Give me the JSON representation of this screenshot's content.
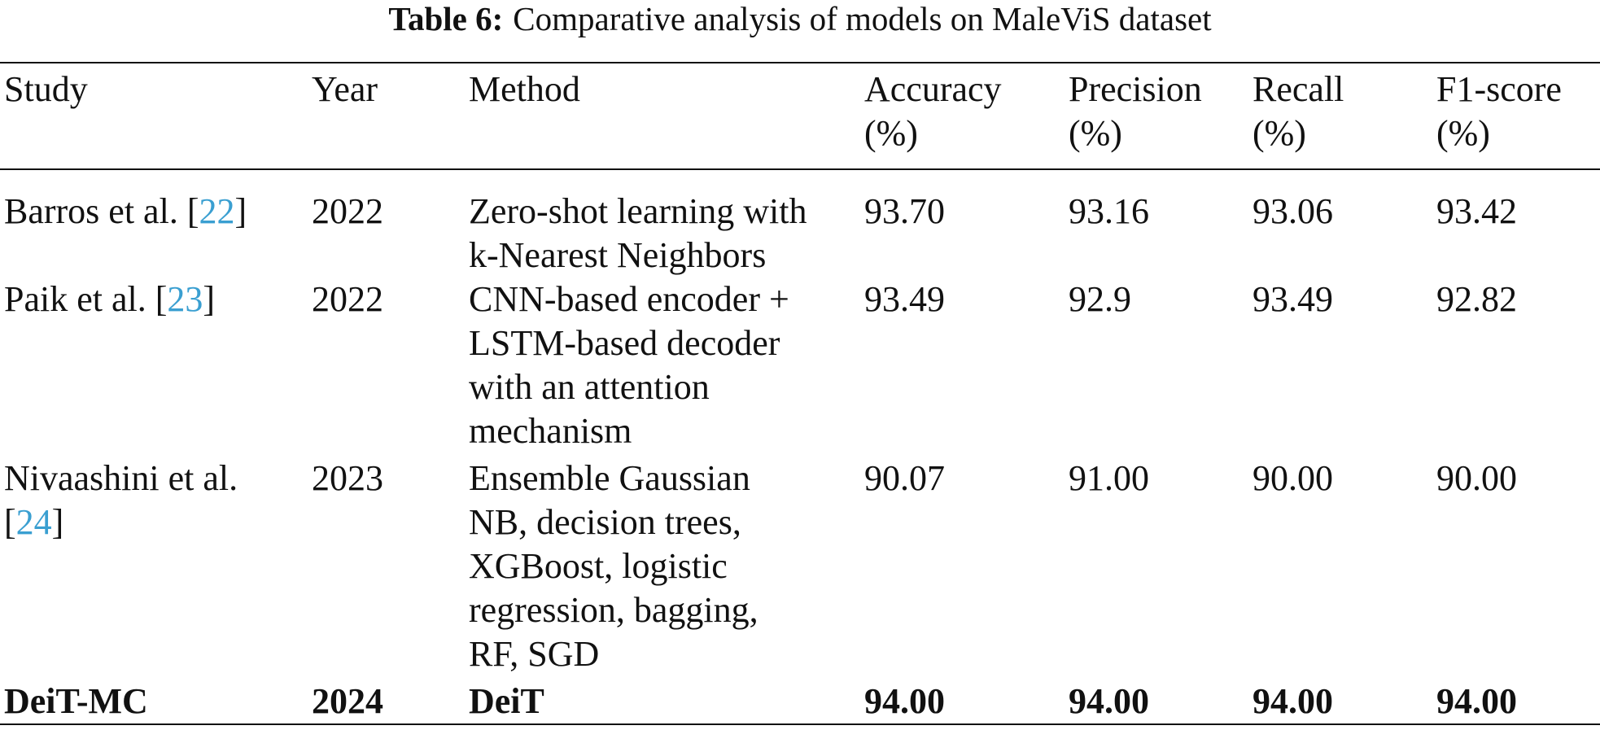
{
  "caption": {
    "label": "Table 6:",
    "text": "Comparative analysis of models on MaleViS dataset"
  },
  "columns": [
    {
      "line1": "Study",
      "line2": ""
    },
    {
      "line1": "Year",
      "line2": ""
    },
    {
      "line1": "Method",
      "line2": ""
    },
    {
      "line1": "Accuracy",
      "line2": "(%)"
    },
    {
      "line1": "Precision",
      "line2": "(%)"
    },
    {
      "line1": "Recall",
      "line2": "(%)"
    },
    {
      "line1": "F1-score",
      "line2": "(%)"
    }
  ],
  "rows": [
    {
      "study": "Barros et al. ",
      "ref": "22",
      "year": "2022",
      "method": [
        "Zero-shot learning with",
        "k-Nearest Neighbors"
      ],
      "accuracy": "93.70",
      "precision": "93.16",
      "recall": "93.06",
      "f1": "93.42"
    },
    {
      "study": "Paik et al. ",
      "ref": "23",
      "year": "2022",
      "method": [
        "CNN-based encoder +",
        "LSTM-based decoder",
        "with an attention",
        "mechanism"
      ],
      "accuracy": "93.49",
      "precision": "92.9",
      "recall": "93.49",
      "f1": "92.82"
    },
    {
      "study": "Nivaashini et al.",
      "ref": "24",
      "year": "2023",
      "method": [
        "Ensemble Gaussian",
        "NB, decision trees,",
        "XGBoost, logistic",
        "regression, bagging,",
        "RF, SGD"
      ],
      "accuracy": "90.07",
      "precision": "91.00",
      "recall": "90.00",
      "f1": "90.00"
    },
    {
      "study": "DeiT-MC",
      "year": "2024",
      "method": [
        "DeiT"
      ],
      "accuracy": "94.00",
      "precision": "94.00",
      "recall": "94.00",
      "f1": "94.00"
    }
  ]
}
